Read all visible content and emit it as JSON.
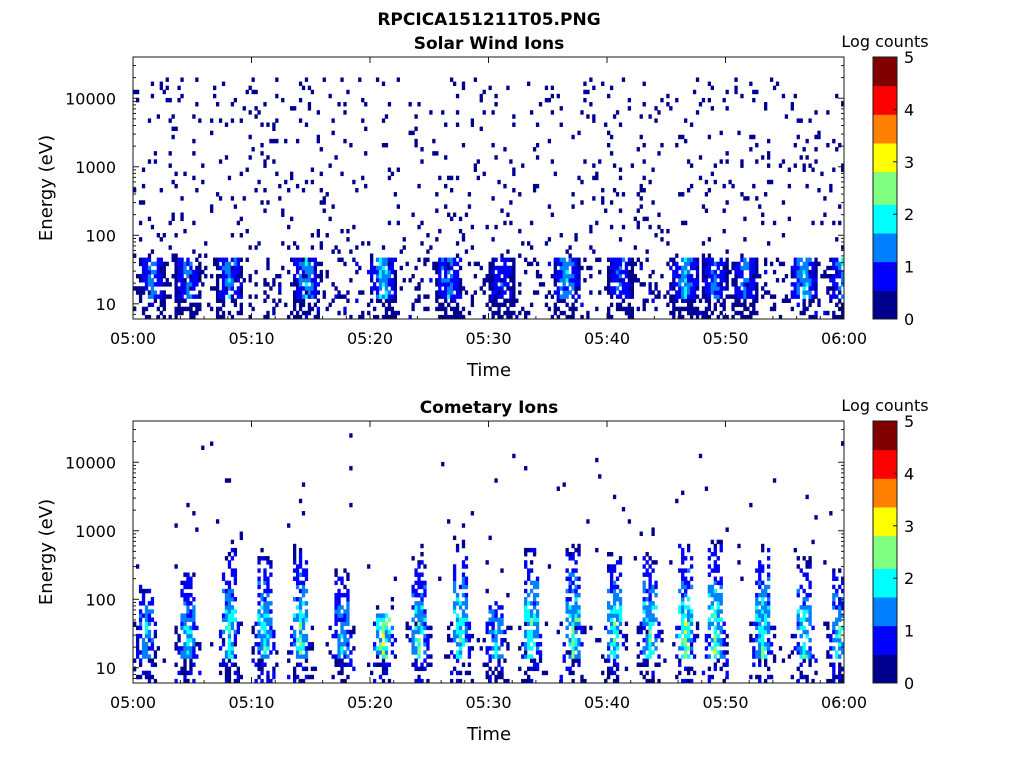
{
  "figure_title": "RPCICA151211T05.PNG",
  "colormap": [
    "#00008f",
    "#0000ff",
    "#0080ff",
    "#00ffff",
    "#80ff80",
    "#ffff00",
    "#ff8000",
    "#ff0000",
    "#800000"
  ],
  "chart_data": [
    {
      "type": "heatmap",
      "title": "Solar Wind Ions",
      "xlabel": "Time",
      "ylabel": "Energy (eV)",
      "x_ticks": [
        "05:00",
        "05:10",
        "05:20",
        "05:30",
        "05:40",
        "05:50",
        "06:00"
      ],
      "y_ticks": [
        "10",
        "100",
        "1000",
        "10000"
      ],
      "y_scale": "log",
      "ylim": [
        6,
        40000
      ],
      "colorbar_label": "Log counts",
      "colorbar_ticks": [
        "0",
        "1",
        "2",
        "3",
        "4",
        "5"
      ],
      "zlim": [
        0,
        5
      ],
      "pattern": {
        "background_count_density": 0.06,
        "background_energy_range": [
          50,
          20000
        ],
        "low_energy_bursts": [
          {
            "t": 1.5,
            "lev": 1.7
          },
          {
            "t": 4.5,
            "lev": 1.6
          },
          {
            "t": 8.0,
            "lev": 1.8
          },
          {
            "t": 14.5,
            "lev": 2.0
          },
          {
            "t": 21.0,
            "lev": 2.2
          },
          {
            "t": 26.5,
            "lev": 1.8
          },
          {
            "t": 31.0,
            "lev": 1.3
          },
          {
            "t": 36.5,
            "lev": 2.0
          },
          {
            "t": 41.0,
            "lev": 1.4
          },
          {
            "t": 46.5,
            "lev": 2.0
          },
          {
            "t": 49.0,
            "lev": 1.6
          },
          {
            "t": 51.5,
            "lev": 1.6
          },
          {
            "t": 56.5,
            "lev": 2.1
          },
          {
            "t": 59.8,
            "lev": 1.8
          }
        ]
      }
    },
    {
      "type": "heatmap",
      "title": "Cometary Ions",
      "xlabel": "Time",
      "ylabel": "Energy (eV)",
      "x_ticks": [
        "05:00",
        "05:10",
        "05:20",
        "05:30",
        "05:40",
        "05:50",
        "06:00"
      ],
      "y_ticks": [
        "10",
        "100",
        "1000",
        "10000"
      ],
      "y_scale": "log",
      "ylim": [
        6,
        40000
      ],
      "colorbar_label": "Log counts",
      "colorbar_ticks": [
        "0",
        "1",
        "2",
        "3",
        "4",
        "5"
      ],
      "zlim": [
        0,
        5
      ],
      "pattern": {
        "bursts": [
          {
            "t": 1.0,
            "peak_eV": 200,
            "lev": 2.0
          },
          {
            "t": 4.5,
            "peak_eV": 300,
            "lev": 2.1
          },
          {
            "t": 8.0,
            "peak_eV": 700,
            "lev": 2.4
          },
          {
            "t": 11.0,
            "peak_eV": 600,
            "lev": 2.3
          },
          {
            "t": 14.0,
            "peak_eV": 700,
            "lev": 2.4
          },
          {
            "t": 17.5,
            "peak_eV": 300,
            "lev": 2.0
          },
          {
            "t": 21.0,
            "peak_eV": 60,
            "lev": 3.0
          },
          {
            "t": 24.0,
            "peak_eV": 500,
            "lev": 2.4
          },
          {
            "t": 27.5,
            "peak_eV": 800,
            "lev": 2.6
          },
          {
            "t": 30.5,
            "peak_eV": 100,
            "lev": 2.0
          },
          {
            "t": 33.5,
            "peak_eV": 600,
            "lev": 2.7
          },
          {
            "t": 37.0,
            "peak_eV": 700,
            "lev": 2.6
          },
          {
            "t": 40.5,
            "peak_eV": 500,
            "lev": 2.6
          },
          {
            "t": 43.5,
            "peak_eV": 500,
            "lev": 2.6
          },
          {
            "t": 46.5,
            "peak_eV": 800,
            "lev": 2.8
          },
          {
            "t": 49.0,
            "peak_eV": 800,
            "lev": 2.7
          },
          {
            "t": 53.0,
            "peak_eV": 700,
            "lev": 2.6
          },
          {
            "t": 56.5,
            "peak_eV": 400,
            "lev": 2.4
          },
          {
            "t": 59.5,
            "peak_eV": 300,
            "lev": 2.3
          }
        ]
      }
    }
  ]
}
